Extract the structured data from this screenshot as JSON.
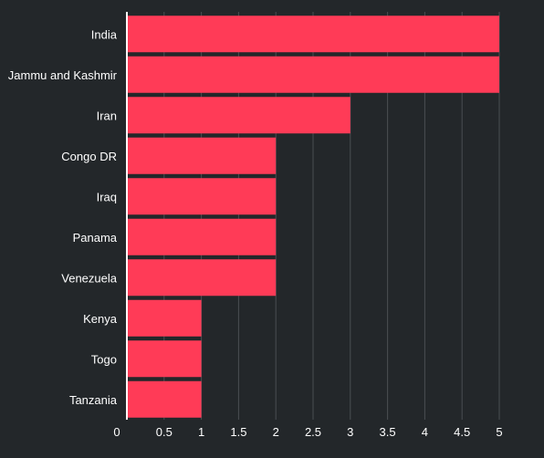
{
  "chart_data": {
    "type": "bar",
    "orientation": "horizontal",
    "categories": [
      "India",
      "Jammu and Kashmir",
      "Iran",
      "Congo DR",
      "Iraq",
      "Panama",
      "Venezuela",
      "Kenya",
      "Togo",
      "Tanzania"
    ],
    "values": [
      5,
      5,
      3,
      2,
      2,
      2,
      2,
      1,
      1,
      1
    ],
    "xlim": [
      0,
      5
    ],
    "x_ticks": [
      "0",
      "0.5",
      "1",
      "1.5",
      "2",
      "2.5",
      "3",
      "3.5",
      "4",
      "4.5",
      "5"
    ],
    "title": "",
    "xlabel": "",
    "ylabel": "",
    "grid": true,
    "legend": "none"
  },
  "colors": {
    "background": "#23272a",
    "bar": "#ff3b57",
    "text": "#ffffff",
    "grid": "#4a4f53"
  }
}
